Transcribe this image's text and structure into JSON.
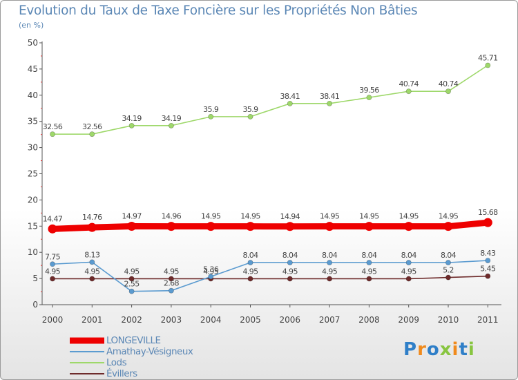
{
  "header": {
    "title": "Evolution du Taux de Taxe Foncière sur les Propriétés Non Bâties",
    "subtitle": "(en %)"
  },
  "brand": {
    "letters": [
      "P",
      "r",
      "o",
      "x",
      "i",
      "t",
      "i"
    ]
  },
  "chart_data": {
    "type": "line",
    "title": "Evolution du Taux de Taxe Foncière sur les Propriétés Non Bâties",
    "ylabel": "(en %)",
    "xlabel": "",
    "ylim": [
      0,
      50
    ],
    "yticks": [
      0,
      5,
      10,
      15,
      20,
      25,
      30,
      35,
      40,
      45,
      50
    ],
    "grid": false,
    "legend": "bottom-left",
    "categories": [
      "2000",
      "2001",
      "2002",
      "2003",
      "2004",
      "2005",
      "2006",
      "2007",
      "2008",
      "2009",
      "2010",
      "2011"
    ],
    "series": [
      {
        "name": "Évillers",
        "color": "#6e2b2b",
        "values": [
          4.95,
          4.95,
          4.95,
          4.95,
          4.95,
          4.95,
          4.95,
          4.95,
          4.95,
          4.95,
          5.2,
          5.45
        ],
        "labels": [
          "4.95",
          "4.95",
          "4.95",
          "4.95",
          "4.95",
          "4.95",
          "4.95",
          "4.95",
          "4.95",
          "4.95",
          "5.2",
          "5.45"
        ]
      },
      {
        "name": "Amathay-Vésigneux",
        "color": "#5b9bd0",
        "values": [
          7.75,
          8.13,
          2.55,
          2.68,
          5.36,
          8.04,
          8.04,
          8.04,
          8.04,
          8.04,
          8.04,
          8.43
        ],
        "labels": [
          "7.75",
          "8.13",
          "2.55",
          "2.68",
          "5.36",
          "8.04",
          "8.04",
          "8.04",
          "8.04",
          "8.04",
          "8.04",
          "8.43"
        ]
      },
      {
        "name": "Lods",
        "color": "#9ed86a",
        "values": [
          32.56,
          32.56,
          34.19,
          34.19,
          35.9,
          35.9,
          38.41,
          38.41,
          39.56,
          40.74,
          40.74,
          45.71
        ],
        "labels": [
          "32.56",
          "32.56",
          "34.19",
          "34.19",
          "35.9",
          "35.9",
          "38.41",
          "38.41",
          "39.56",
          "40.74",
          "40.74",
          "45.71"
        ]
      },
      {
        "name": "LONGEVILLE",
        "color": "#ee0000",
        "values": [
          14.47,
          14.76,
          14.97,
          14.96,
          14.95,
          14.95,
          14.94,
          14.95,
          14.95,
          14.95,
          14.95,
          15.68
        ],
        "labels": [
          "14.47",
          "14.76",
          "14.97",
          "14.96",
          "14.95",
          "14.95",
          "14.94",
          "14.95",
          "14.95",
          "14.95",
          "14.95",
          "15.68"
        ]
      }
    ],
    "legend_order": [
      "LONGEVILLE",
      "Amathay-Vésigneux",
      "Lods",
      "Évillers"
    ]
  }
}
